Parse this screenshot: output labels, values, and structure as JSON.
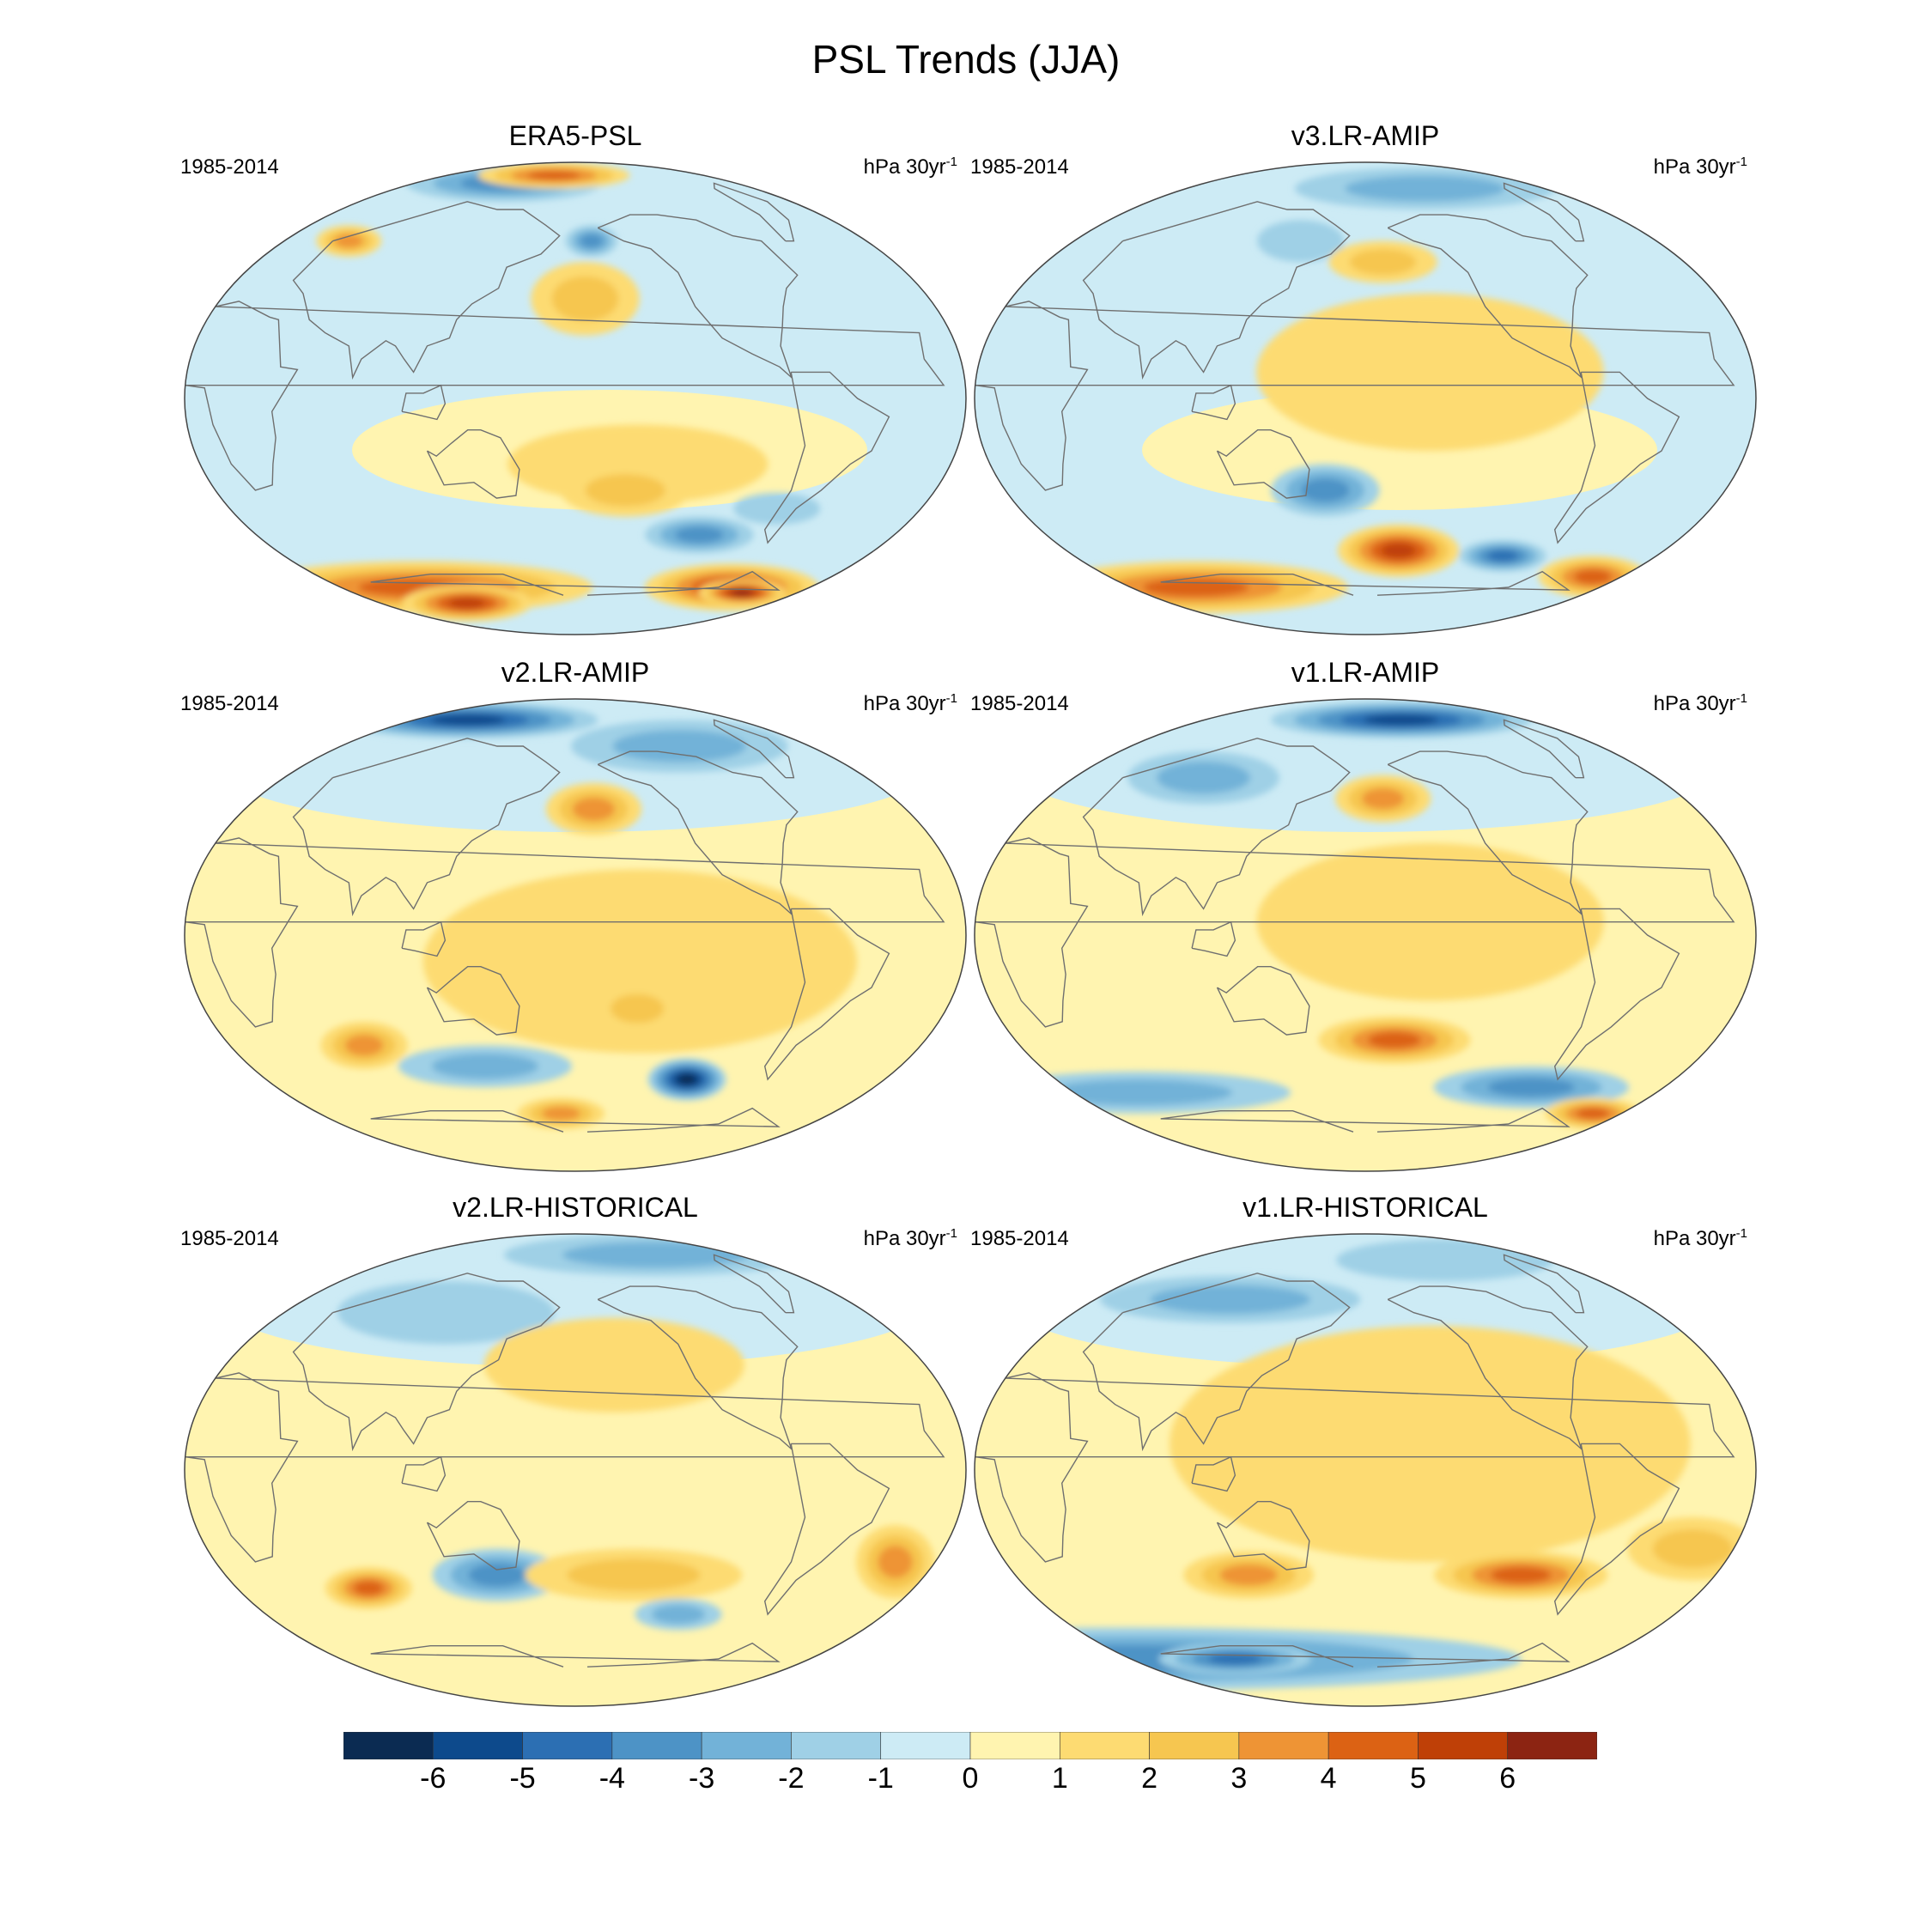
{
  "title": "PSL Trends (JJA)",
  "palette": [
    "#0b2b52",
    "#0d4a8c",
    "#2c6fb3",
    "#4d93c6",
    "#72b2d8",
    "#9fd0e6",
    "#cdebf5",
    "#fff4b0",
    "#fddb72",
    "#f6c650",
    "#ee9435",
    "#dc6214",
    "#bf4007",
    "#8c2412"
  ],
  "colorbar": {
    "labels": [
      "-6",
      "-5",
      "-4",
      "-3",
      "-2",
      "-1",
      "0",
      "1",
      "2",
      "3",
      "4",
      "5",
      "6"
    ]
  },
  "panels": [
    {
      "title": "ERA5-PSL",
      "period": "1985-2014",
      "units": "hPa 30yr",
      "units_exp": "-1",
      "anomalies": [
        {
          "lon": 100,
          "lat": 82,
          "rx": 45,
          "ry": 7,
          "v": -3
        },
        {
          "lon": 150,
          "lat": 85,
          "rx": 35,
          "ry": 5,
          "v": 4
        },
        {
          "lon": 40,
          "lat": 60,
          "rx": 15,
          "ry": 6,
          "v": 3
        },
        {
          "lon": -170,
          "lat": 60,
          "rx": 12,
          "ry": 6,
          "v": -3
        },
        {
          "lon": -175,
          "lat": 38,
          "rx": 25,
          "ry": 14,
          "v": 2
        },
        {
          "lon": -150,
          "lat": -25,
          "rx": 60,
          "ry": 15,
          "v": 1
        },
        {
          "lon": -155,
          "lat": -35,
          "rx": 30,
          "ry": 10,
          "v": 2
        },
        {
          "lon": -110,
          "lat": -52,
          "rx": 25,
          "ry": 7,
          "v": -3
        },
        {
          "lon": -75,
          "lat": -42,
          "rx": 20,
          "ry": 6,
          "v": -1
        },
        {
          "lon": 60,
          "lat": -72,
          "rx": 80,
          "ry": 10,
          "v": 4
        },
        {
          "lon": 80,
          "lat": -78,
          "rx": 30,
          "ry": 7,
          "v": 5
        },
        {
          "lon": -60,
          "lat": -72,
          "rx": 40,
          "ry": 9,
          "v": 5
        },
        {
          "lon": -45,
          "lat": -74,
          "rx": 20,
          "ry": 5,
          "v": 6
        }
      ],
      "background": 0
    },
    {
      "title": "v3.LR-AMIP",
      "period": "1985-2014",
      "units": "hPa 30yr",
      "units_exp": "-1",
      "anomalies": [
        {
          "lon": -120,
          "lat": 80,
          "rx": 60,
          "ry": 8,
          "v": -2
        },
        {
          "lon": 140,
          "lat": 60,
          "rx": 20,
          "ry": 8,
          "v": -1
        },
        {
          "lon": -170,
          "lat": 52,
          "rx": 25,
          "ry": 8,
          "v": 2
        },
        {
          "lon": -150,
          "lat": 10,
          "rx": 80,
          "ry": 30,
          "v": 1
        },
        {
          "lon": 160,
          "lat": -35,
          "rx": 25,
          "ry": 10,
          "v": -3
        },
        {
          "lon": -160,
          "lat": -58,
          "rx": 28,
          "ry": 10,
          "v": 5
        },
        {
          "lon": -95,
          "lat": -60,
          "rx": 20,
          "ry": 6,
          "v": -4
        },
        {
          "lon": 50,
          "lat": -72,
          "rx": 70,
          "ry": 10,
          "v": 4
        },
        {
          "lon": -20,
          "lat": -68,
          "rx": 25,
          "ry": 8,
          "v": 4
        }
      ],
      "background": 0
    },
    {
      "title": "v2.LR-AMIP",
      "period": "1985-2014",
      "units": "hPa 30yr",
      "units_exp": "-1",
      "anomalies": [
        {
          "lon": 60,
          "lat": 82,
          "rx": 60,
          "ry": 7,
          "v": -5
        },
        {
          "lon": -100,
          "lat": 72,
          "rx": 50,
          "ry": 10,
          "v": -2
        },
        {
          "lon": -170,
          "lat": 48,
          "rx": 22,
          "ry": 10,
          "v": 3
        },
        {
          "lon": -150,
          "lat": -10,
          "rx": 100,
          "ry": 35,
          "v": 1
        },
        {
          "lon": 70,
          "lat": -42,
          "rx": 20,
          "ry": 9,
          "v": 3
        },
        {
          "lon": 130,
          "lat": -50,
          "rx": 40,
          "ry": 8,
          "v": -2
        },
        {
          "lon": -150,
          "lat": -28,
          "rx": 20,
          "ry": 9,
          "v": 2
        },
        {
          "lon": -115,
          "lat": -55,
          "rx": 18,
          "ry": 8,
          "v": -6
        },
        {
          "lon": 170,
          "lat": -68,
          "rx": 20,
          "ry": 6,
          "v": 3
        }
      ],
      "background": 1
    },
    {
      "title": "v1.LR-AMIP",
      "period": "1985-2014",
      "units": "hPa 30yr",
      "units_exp": "-1",
      "anomalies": [
        {
          "lon": -140,
          "lat": 82,
          "rx": 60,
          "ry": 7,
          "v": -5
        },
        {
          "lon": 80,
          "lat": 60,
          "rx": 35,
          "ry": 10,
          "v": -2
        },
        {
          "lon": -170,
          "lat": 52,
          "rx": 22,
          "ry": 9,
          "v": 3
        },
        {
          "lon": -150,
          "lat": 5,
          "rx": 80,
          "ry": 30,
          "v": 1
        },
        {
          "lon": -165,
          "lat": -40,
          "rx": 35,
          "ry": 9,
          "v": 4
        },
        {
          "lon": -80,
          "lat": -58,
          "rx": 45,
          "ry": 8,
          "v": -3
        },
        {
          "lon": 40,
          "lat": -60,
          "rx": 70,
          "ry": 8,
          "v": -2
        },
        {
          "lon": -20,
          "lat": -68,
          "rx": 22,
          "ry": 6,
          "v": 4
        }
      ],
      "background": 1
    },
    {
      "title": "v2.LR-HISTORICAL",
      "period": "1985-2014",
      "units": "hPa 30yr",
      "units_exp": "-1",
      "anomalies": [
        {
          "lon": -90,
          "lat": 82,
          "rx": 70,
          "ry": 8,
          "v": -2
        },
        {
          "lon": 100,
          "lat": 60,
          "rx": 50,
          "ry": 12,
          "v": -1
        },
        {
          "lon": -160,
          "lat": 40,
          "rx": 60,
          "ry": 18,
          "v": 1
        },
        {
          "lon": 70,
          "lat": -45,
          "rx": 20,
          "ry": 8,
          "v": 4
        },
        {
          "lon": 140,
          "lat": -40,
          "rx": 30,
          "ry": 10,
          "v": -3
        },
        {
          "lon": -150,
          "lat": -40,
          "rx": 50,
          "ry": 10,
          "v": 2
        },
        {
          "lon": -120,
          "lat": -55,
          "rx": 20,
          "ry": 6,
          "v": -2
        },
        {
          "lon": -20,
          "lat": -35,
          "rx": 18,
          "ry": 14,
          "v": 3
        }
      ],
      "background": 1
    },
    {
      "title": "v1.LR-HISTORICAL",
      "period": "1985-2014",
      "units": "hPa 30yr",
      "units_exp": "-1",
      "anomalies": [
        {
          "lon": 90,
          "lat": 65,
          "rx": 60,
          "ry": 9,
          "v": -2
        },
        {
          "lon": -100,
          "lat": 80,
          "rx": 50,
          "ry": 8,
          "v": -1
        },
        {
          "lon": -150,
          "lat": 10,
          "rx": 120,
          "ry": 45,
          "v": 1
        },
        {
          "lon": 120,
          "lat": -40,
          "rx": 30,
          "ry": 9,
          "v": 3
        },
        {
          "lon": -100,
          "lat": -40,
          "rx": 40,
          "ry": 9,
          "v": 4
        },
        {
          "lon": -20,
          "lat": -30,
          "rx": 30,
          "ry": 12,
          "v": 2
        },
        {
          "lon": 0,
          "lat": -72,
          "rx": 180,
          "ry": 12,
          "v": -3
        },
        {
          "lon": 80,
          "lat": -72,
          "rx": 35,
          "ry": 6,
          "v": -4
        }
      ],
      "background": 1
    }
  ]
}
